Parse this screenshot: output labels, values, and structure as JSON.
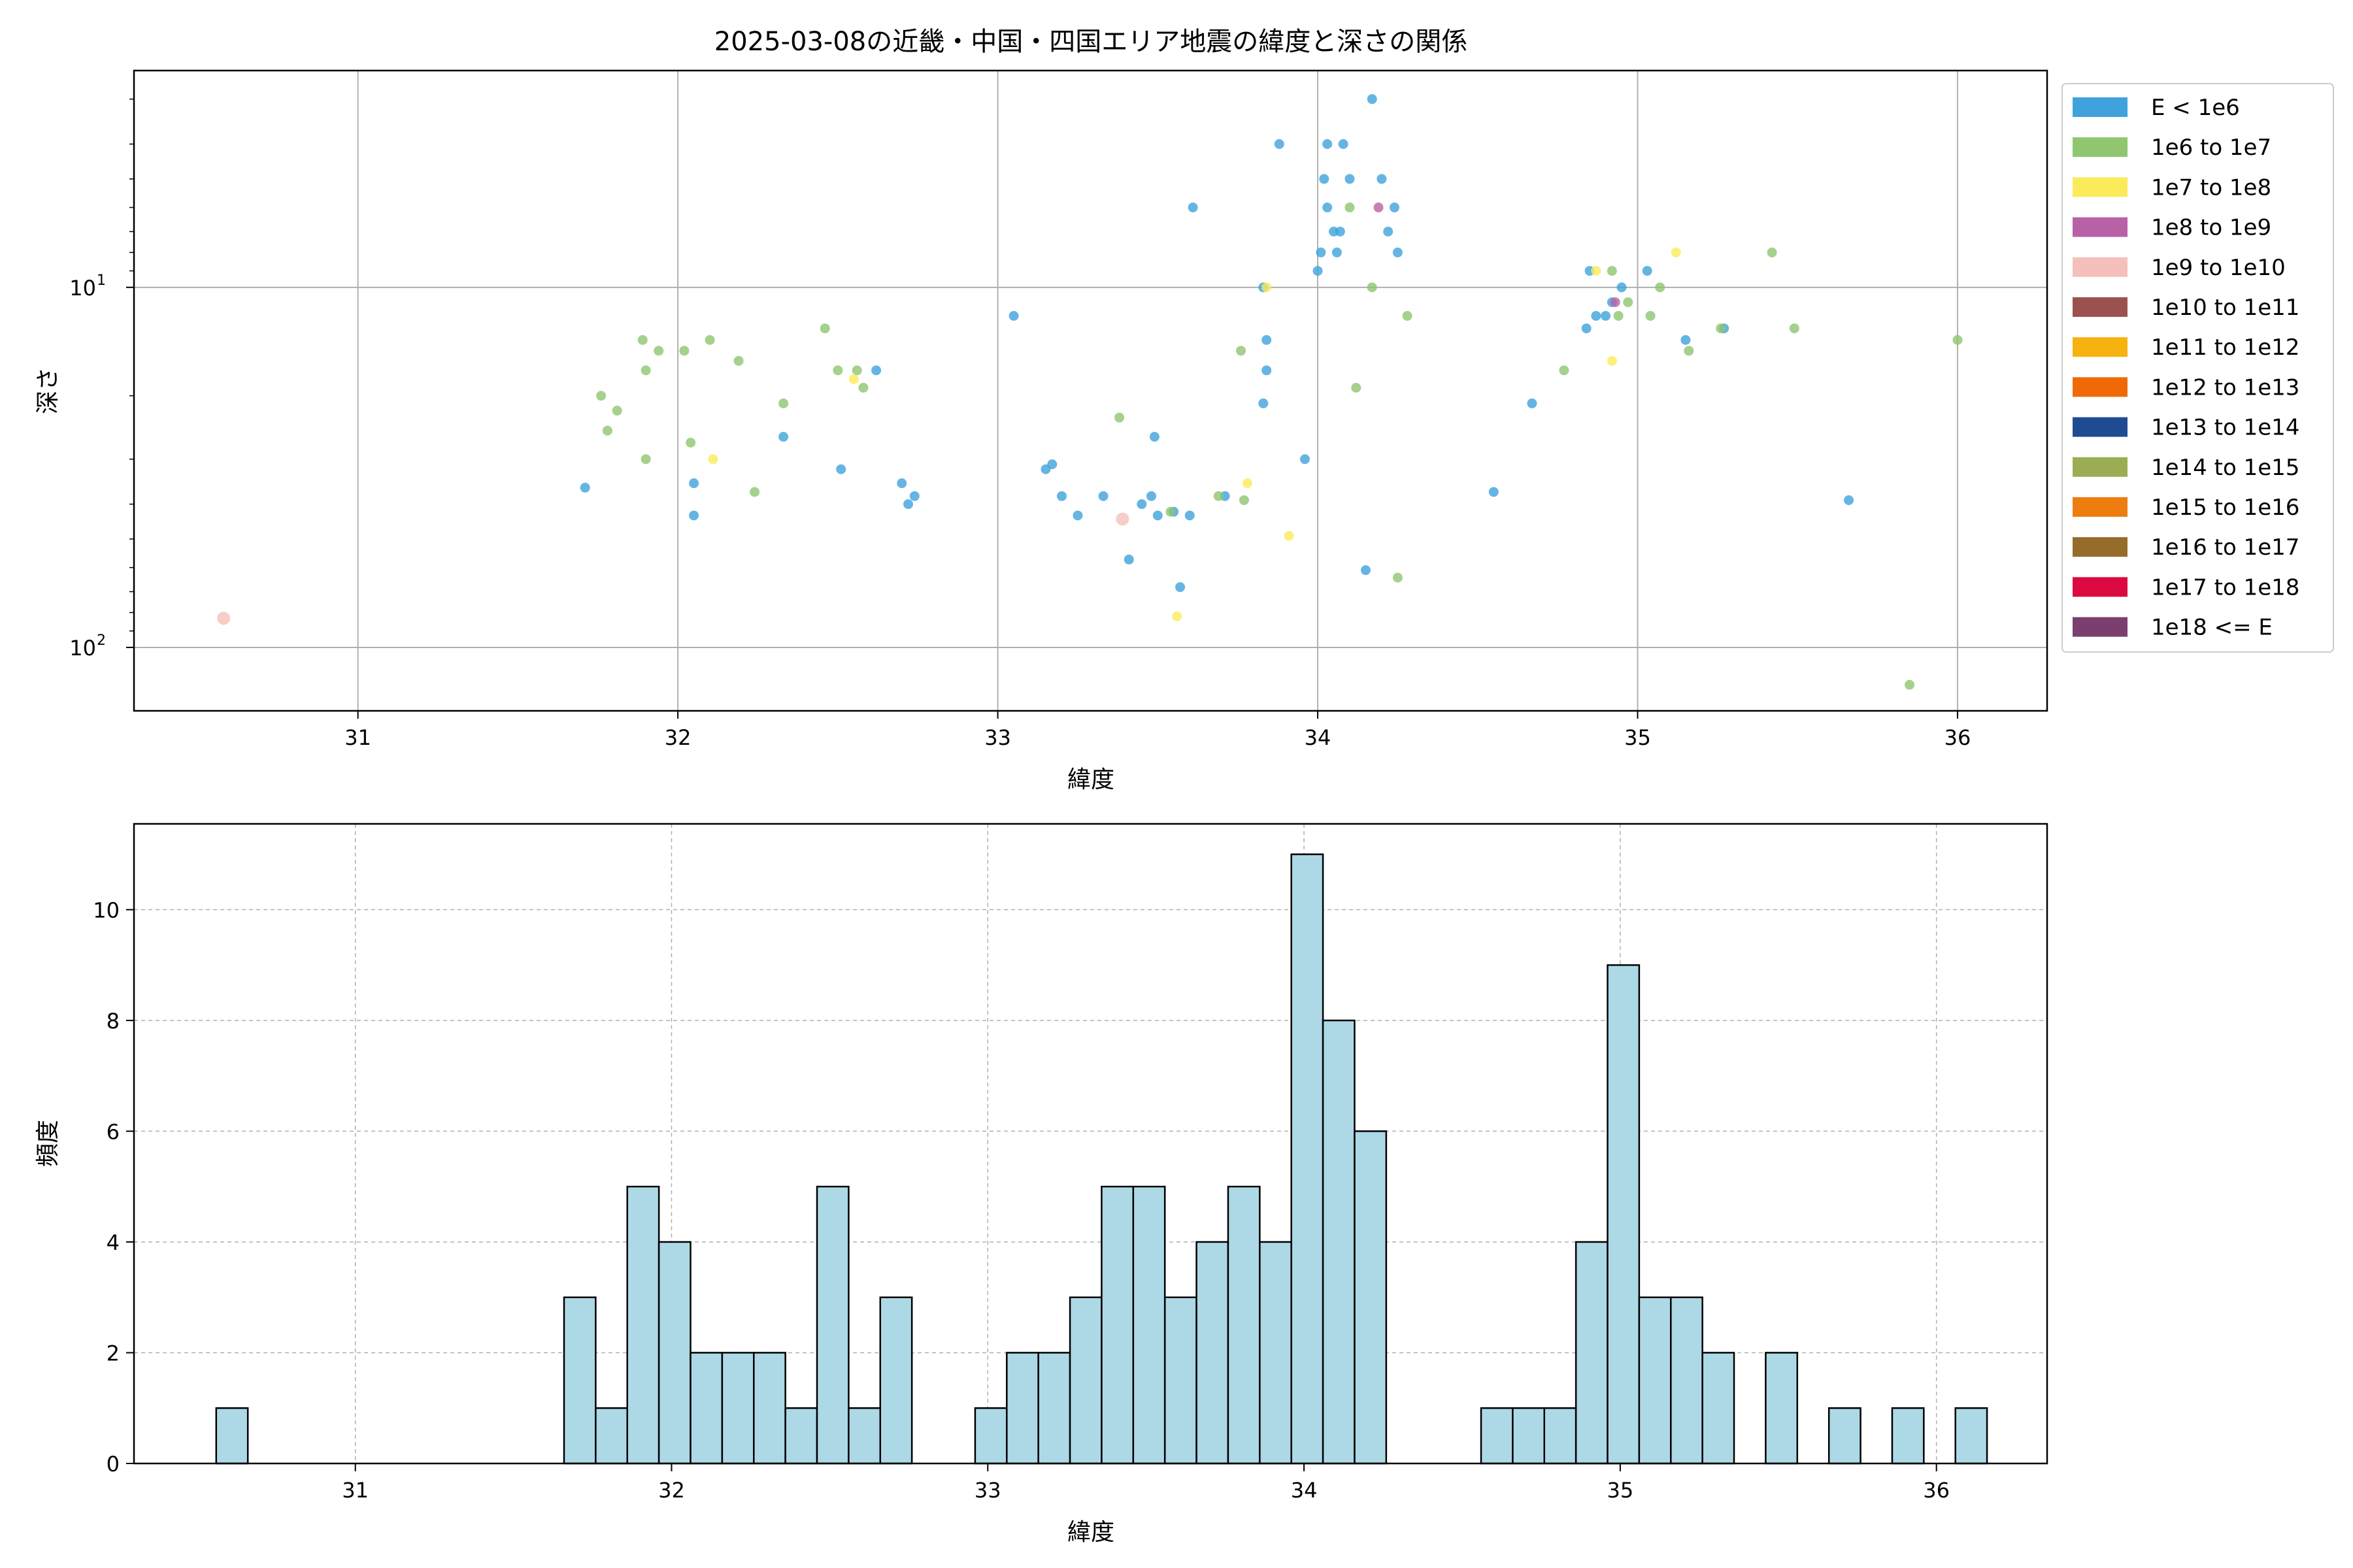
{
  "figure": {
    "title": "2025-03-08の近畿・中国・四国エリア地震の緯度と深さの関係"
  },
  "chart_data": [
    {
      "type": "scatter",
      "title": "2025-03-08の近畿・中国・四国エリア地震の緯度と深さの関係",
      "xlabel": "緯度",
      "ylabel": "深さ",
      "xlim": [
        30.3,
        36.28
      ],
      "ylim": [
        150,
        2.5
      ],
      "yscale": "log",
      "y_inverted": true,
      "grid": true,
      "legend_position": "outside-right",
      "x_ticks": [
        {
          "v": 31,
          "label": "31"
        },
        {
          "v": 32,
          "label": "32"
        },
        {
          "v": 33,
          "label": "33"
        },
        {
          "v": 34,
          "label": "34"
        },
        {
          "v": 35,
          "label": "35"
        },
        {
          "v": 36,
          "label": "36"
        }
      ],
      "y_ticks": [
        {
          "v": 10,
          "base": "10",
          "exp": "1"
        },
        {
          "v": 100,
          "base": "10",
          "exp": "2"
        }
      ],
      "legend": [
        {
          "label": "E < 1e6",
          "color": "#3fa2dc"
        },
        {
          "label": "1e6 to 1e7",
          "color": "#8fc66f"
        },
        {
          "label": "1e7 to 1e8",
          "color": "#fbeb5b"
        },
        {
          "label": "1e8 to 1e9",
          "color": "#b961a6"
        },
        {
          "label": "1e9 to 1e10",
          "color": "#f5c0bb"
        },
        {
          "label": "1e10 to 1e11",
          "color": "#9b524e"
        },
        {
          "label": "1e11 to 1e12",
          "color": "#f7b20f"
        },
        {
          "label": "1e12 to 1e13",
          "color": "#ef6907"
        },
        {
          "label": "1e13 to 1e14",
          "color": "#1f4b93"
        },
        {
          "label": "1e14 to 1e15",
          "color": "#9aad52"
        },
        {
          "label": "1e15 to 1e16",
          "color": "#ee7d10"
        },
        {
          "label": "1e16 to 1e17",
          "color": "#956c2a"
        },
        {
          "label": "1e17 to 1e18",
          "color": "#dc0840"
        },
        {
          "label": "1e18 <= E",
          "color": "#7a3f6e"
        }
      ],
      "series": [
        {
          "name": "E < 1e6",
          "color": "#3fa2dc",
          "points": [
            [
              31.71,
              36
            ],
            [
              32.05,
              35
            ],
            [
              32.05,
              43
            ],
            [
              32.33,
              26
            ],
            [
              32.51,
              32
            ],
            [
              32.62,
              17
            ],
            [
              32.7,
              35
            ],
            [
              32.72,
              40
            ],
            [
              32.74,
              38
            ],
            [
              33.05,
              12
            ],
            [
              33.15,
              32
            ],
            [
              33.17,
              31
            ],
            [
              33.2,
              38
            ],
            [
              33.25,
              43
            ],
            [
              33.33,
              38
            ],
            [
              33.41,
              57
            ],
            [
              33.45,
              40
            ],
            [
              33.48,
              38
            ],
            [
              33.5,
              43
            ],
            [
              33.49,
              26
            ],
            [
              33.55,
              42
            ],
            [
              33.57,
              68
            ],
            [
              33.6,
              43
            ],
            [
              33.61,
              6
            ],
            [
              33.71,
              38
            ],
            [
              33.83,
              21
            ],
            [
              33.84,
              17
            ],
            [
              33.83,
              10
            ],
            [
              33.84,
              14
            ],
            [
              33.88,
              4
            ],
            [
              33.96,
              30
            ],
            [
              34.0,
              9
            ],
            [
              34.01,
              8
            ],
            [
              34.02,
              5
            ],
            [
              34.03,
              4
            ],
            [
              34.03,
              6
            ],
            [
              34.05,
              7
            ],
            [
              34.06,
              8
            ],
            [
              34.07,
              7
            ],
            [
              34.08,
              4
            ],
            [
              34.1,
              5
            ],
            [
              34.15,
              61
            ],
            [
              34.17,
              3
            ],
            [
              34.2,
              5
            ],
            [
              34.22,
              7
            ],
            [
              34.24,
              6
            ],
            [
              34.25,
              8
            ],
            [
              34.55,
              37
            ],
            [
              34.67,
              21
            ],
            [
              34.84,
              13
            ],
            [
              34.85,
              9
            ],
            [
              34.87,
              12
            ],
            [
              34.9,
              12
            ],
            [
              34.92,
              11
            ],
            [
              34.95,
              10
            ],
            [
              35.03,
              9
            ],
            [
              35.15,
              14
            ],
            [
              35.27,
              13
            ],
            [
              35.66,
              39
            ]
          ]
        },
        {
          "name": "1e6 to 1e7",
          "color": "#8fc66f",
          "points": [
            [
              31.76,
              20
            ],
            [
              31.78,
              25
            ],
            [
              31.81,
              22
            ],
            [
              31.89,
              14
            ],
            [
              31.9,
              17
            ],
            [
              31.9,
              30
            ],
            [
              31.94,
              15
            ],
            [
              32.02,
              15
            ],
            [
              32.04,
              27
            ],
            [
              32.1,
              14
            ],
            [
              32.19,
              16
            ],
            [
              32.24,
              37
            ],
            [
              32.33,
              21
            ],
            [
              32.46,
              13
            ],
            [
              32.5,
              17
            ],
            [
              32.56,
              17
            ],
            [
              32.58,
              19
            ],
            [
              33.38,
              23
            ],
            [
              33.54,
              42
            ],
            [
              33.69,
              38
            ],
            [
              33.76,
              15
            ],
            [
              33.77,
              39
            ],
            [
              34.1,
              6
            ],
            [
              34.12,
              19
            ],
            [
              34.17,
              10
            ],
            [
              34.25,
              64
            ],
            [
              34.28,
              12
            ],
            [
              34.77,
              17
            ],
            [
              34.92,
              9
            ],
            [
              34.94,
              12
            ],
            [
              34.97,
              11
            ],
            [
              35.04,
              12
            ],
            [
              35.07,
              10
            ],
            [
              35.16,
              15
            ],
            [
              35.26,
              13
            ],
            [
              35.42,
              8
            ],
            [
              35.49,
              13
            ],
            [
              35.85,
              127
            ],
            [
              36.0,
              14
            ]
          ]
        },
        {
          "name": "1e7 to 1e8",
          "color": "#fbeb5b",
          "points": [
            [
              32.11,
              30
            ],
            [
              32.55,
              18
            ],
            [
              33.56,
              82
            ],
            [
              33.78,
              35
            ],
            [
              33.84,
              10
            ],
            [
              33.91,
              49
            ],
            [
              34.87,
              9
            ],
            [
              34.92,
              16
            ],
            [
              35.12,
              8
            ]
          ]
        },
        {
          "name": "1e8 to 1e9",
          "color": "#b961a6",
          "points": [
            [
              34.19,
              6
            ],
            [
              34.93,
              11
            ]
          ]
        },
        {
          "name": "1e9 to 1e10",
          "color": "#f5c0bb",
          "points": [
            [
              30.58,
              83
            ],
            [
              33.39,
              44
            ]
          ]
        }
      ]
    },
    {
      "type": "bar",
      "title": "",
      "xlabel": "緯度",
      "ylabel": "頻度",
      "xlim": [
        30.3,
        36.35
      ],
      "ylim": [
        0,
        11.55
      ],
      "grid": true,
      "bar_color": "#add8e6",
      "bar_edge": "#000000",
      "bin_start": 30.56,
      "bin_width": 0.1,
      "x_ticks": [
        {
          "v": 31,
          "label": "31"
        },
        {
          "v": 32,
          "label": "32"
        },
        {
          "v": 33,
          "label": "33"
        },
        {
          "v": 34,
          "label": "34"
        },
        {
          "v": 35,
          "label": "35"
        },
        {
          "v": 36,
          "label": "36"
        }
      ],
      "y_ticks": [
        {
          "v": 0,
          "label": "0"
        },
        {
          "v": 2,
          "label": "2"
        },
        {
          "v": 4,
          "label": "4"
        },
        {
          "v": 6,
          "label": "6"
        },
        {
          "v": 8,
          "label": "8"
        },
        {
          "v": 10,
          "label": "10"
        }
      ],
      "values": [
        1,
        0,
        0,
        0,
        0,
        0,
        0,
        0,
        0,
        0,
        0,
        3,
        1,
        5,
        4,
        2,
        2,
        2,
        1,
        5,
        1,
        3,
        0,
        0,
        1,
        2,
        2,
        3,
        5,
        5,
        3,
        4,
        5,
        4,
        11,
        8,
        6,
        0,
        0,
        0,
        1,
        1,
        1,
        4,
        9,
        3,
        3,
        2,
        0,
        2,
        0,
        1,
        0,
        1,
        0,
        1
      ]
    }
  ]
}
